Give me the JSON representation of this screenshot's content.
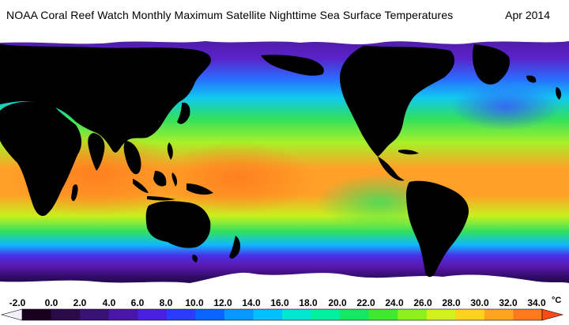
{
  "header": {
    "title": "NOAA Coral Reef Watch Monthly Maximum Satellite Nighttime Sea Surface Temperatures",
    "date": "Apr 2014"
  },
  "map": {
    "variable": "Sea Surface Temperature",
    "colors": {
      "land": "#000000",
      "ice": "#ffffff",
      "deep_cold": "#2a0a5a",
      "cold": "#4b16b8",
      "cool": "#0a8cff",
      "temperate": "#22e05a",
      "warm": "#c8f01e",
      "hot": "#ff9a1e"
    }
  },
  "colorbar": {
    "tick_labels": [
      "-2.0",
      "0.0",
      "2.0",
      "4.0",
      "6.0",
      "8.0",
      "10.0",
      "12.0",
      "14.0",
      "16.0",
      "18.0",
      "20.0",
      "22.0",
      "24.0",
      "26.0",
      "28.0",
      "30.0",
      "32.0",
      "34.0"
    ],
    "unit": "°C",
    "colors": [
      "#f4f0ff",
      "#1a0020",
      "#2b0a4a",
      "#3a1276",
      "#4a16a8",
      "#4a20e0",
      "#2a3cff",
      "#0a64ff",
      "#0a96ff",
      "#00c0ff",
      "#00e6d2",
      "#00f0a0",
      "#14e862",
      "#40e830",
      "#8cf01e",
      "#d2f01a",
      "#ffd21e",
      "#ffa41e",
      "#ff7a1e",
      "#ff4a14"
    ]
  }
}
